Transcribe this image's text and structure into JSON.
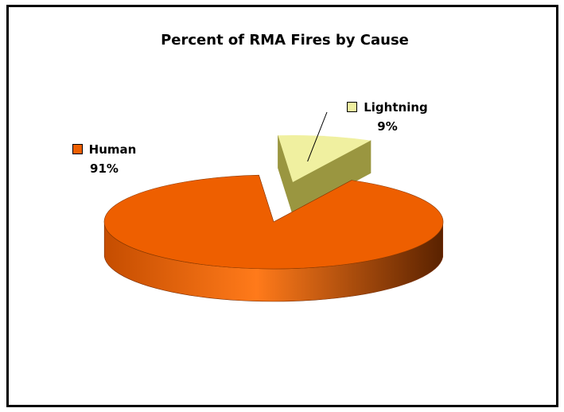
{
  "chart_data": {
    "type": "pie",
    "title": "Percent of RMA Fires by Cause",
    "slices": [
      {
        "label": "Human",
        "value": 91,
        "value_label": "91%",
        "color": "#ee5f00",
        "dark": "#7a2d00"
      },
      {
        "label": "Lightning",
        "value": 9,
        "value_label": "9%",
        "color": "#f0f0a0",
        "dark": "#9a9640"
      }
    ],
    "style": "3d-exploded",
    "legend": "labels-with-swatches"
  }
}
